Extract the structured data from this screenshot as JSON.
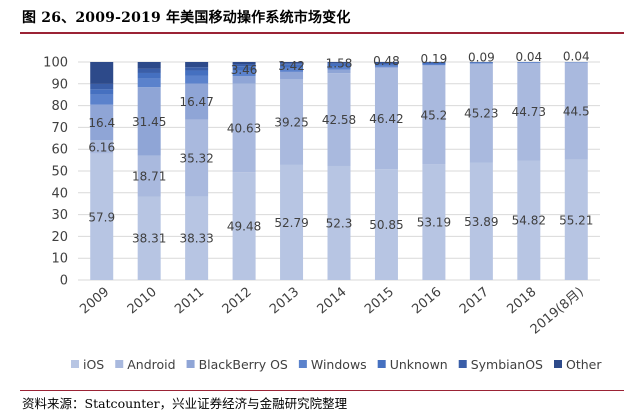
{
  "title": "图 26、2009-2019 年美国移动操作系统市场变化",
  "source": "资料来源：Statcounter，兴业证券经济与金融研究院整理",
  "chart_data": {
    "type": "bar",
    "stacked": true,
    "categories": [
      "2009",
      "2010",
      "2011",
      "2012",
      "2013",
      "2014",
      "2015",
      "2016",
      "2017",
      "2018",
      "2019(8月)"
    ],
    "ylim": [
      0,
      100
    ],
    "yticks": [
      0,
      10,
      20,
      30,
      40,
      50,
      60,
      70,
      80,
      90,
      100
    ],
    "grid": true,
    "legend_position": "bottom",
    "series": [
      {
        "name": "iOS",
        "color": "#b7c5e3",
        "values": [
          57.9,
          38.31,
          38.33,
          49.48,
          52.79,
          52.3,
          50.85,
          53.19,
          53.89,
          54.82,
          55.21
        ],
        "labels": [
          "57.9",
          "38.31",
          "38.33",
          "49.48",
          "52.79",
          "52.3",
          "50.85",
          "53.19",
          "53.89",
          "54.82",
          "55.21"
        ]
      },
      {
        "name": "Android",
        "color": "#a9b9de",
        "values": [
          6.16,
          18.71,
          35.32,
          40.63,
          39.25,
          42.58,
          46.42,
          45.2,
          45.23,
          44.73,
          44.5
        ],
        "labels": [
          "6.16",
          "18.71",
          "35.32",
          "40.63",
          "39.25",
          "42.58",
          "46.42",
          "45.2",
          "45.23",
          "44.73",
          "44.5"
        ]
      },
      {
        "name": "BlackBerry OS",
        "color": "#8fa5d6",
        "values": [
          16.4,
          31.45,
          16.47,
          3.46,
          3.42,
          1.58,
          0.48,
          0.19,
          0.09,
          0.04,
          0.04
        ],
        "labels": [
          "16.4",
          "31.45",
          "16.47",
          "3.46",
          "3.42",
          "1.58",
          "0.48",
          "0.19",
          "0.09",
          "0.04",
          "0.04"
        ]
      },
      {
        "name": "Windows",
        "color": "#5b82cc",
        "values": [
          4.5,
          4.0,
          3.5,
          2.5,
          2.0,
          1.5,
          0.5,
          0.3,
          0.2,
          0.1,
          0.1
        ]
      },
      {
        "name": "Unknown",
        "color": "#4570c0",
        "values": [
          2.5,
          2.5,
          2.5,
          2.0,
          1.5,
          1.2,
          0.8,
          0.7,
          0.5,
          0.3,
          0.15
        ]
      },
      {
        "name": "SymbianOS",
        "color": "#3a5ea8",
        "values": [
          2.5,
          2.0,
          1.5,
          1.0,
          0.5,
          0.4,
          0.5,
          0.2,
          0.05,
          0.01,
          0.0
        ]
      },
      {
        "name": "Other",
        "color": "#2d4a8a",
        "values": [
          10.04,
          3.03,
          2.38,
          0.93,
          0.54,
          0.44,
          0.45,
          0.22,
          0.04,
          0.0,
          0.0
        ]
      }
    ]
  }
}
